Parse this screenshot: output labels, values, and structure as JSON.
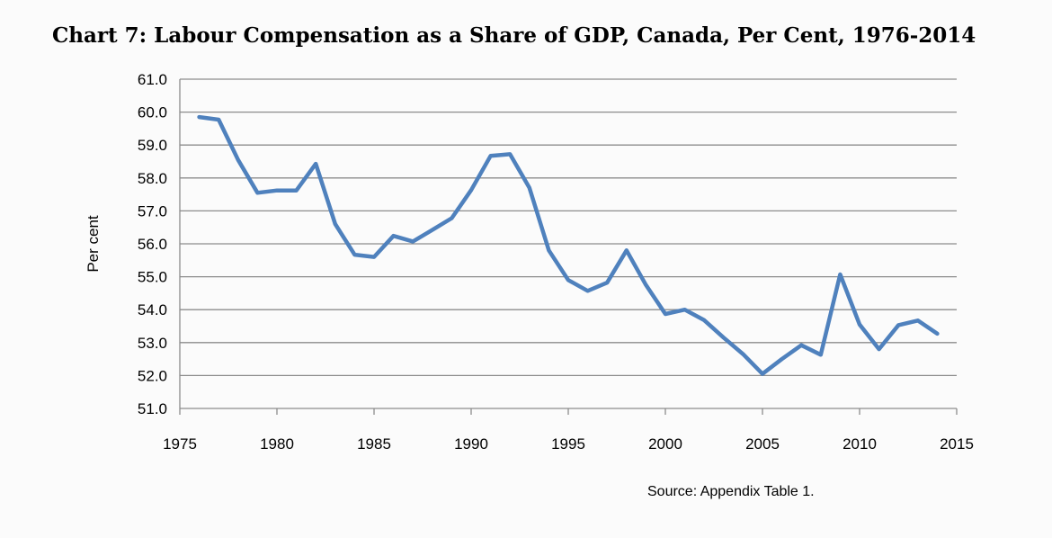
{
  "chart_data": {
    "type": "line",
    "title": "Chart 7: Labour Compensation as a Share of GDP, Canada, Per Cent, 1976-2014",
    "xlabel": "",
    "ylabel": "Per cent",
    "source": "Source: Appendix Table 1.",
    "xlim": [
      1975,
      2015
    ],
    "ylim": [
      51.0,
      61.0
    ],
    "xticks": [
      "1975",
      "1980",
      "1985",
      "1990",
      "1995",
      "2000",
      "2005",
      "2010",
      "2015"
    ],
    "yticks": [
      "51.0",
      "52.0",
      "53.0",
      "54.0",
      "55.0",
      "56.0",
      "57.0",
      "58.0",
      "59.0",
      "60.0",
      "61.0"
    ],
    "grid": true,
    "line_color": "#4f81bd",
    "series": [
      {
        "x": [
          1976,
          1977,
          1978,
          1979,
          1980,
          1981,
          1982,
          1983,
          1984,
          1985,
          1986,
          1987,
          1988,
          1989,
          1990,
          1991,
          1992,
          1993,
          1994,
          1995,
          1996,
          1997,
          1998,
          1999,
          2000,
          2001,
          2002,
          2003,
          2004,
          2005,
          2006,
          2007,
          2008,
          2009,
          2010,
          2011,
          2012,
          2013,
          2014
        ],
        "values": [
          59.85,
          59.77,
          58.55,
          57.55,
          57.62,
          57.62,
          58.43,
          56.6,
          55.67,
          55.6,
          56.24,
          56.07,
          56.42,
          56.78,
          57.63,
          58.67,
          58.72,
          57.7,
          55.8,
          54.9,
          54.57,
          54.82,
          55.8,
          54.75,
          53.87,
          54.0,
          53.68,
          53.15,
          52.65,
          52.05,
          52.5,
          52.92,
          52.63,
          55.07,
          53.55,
          52.8,
          53.53,
          53.67,
          53.27
        ]
      }
    ]
  }
}
